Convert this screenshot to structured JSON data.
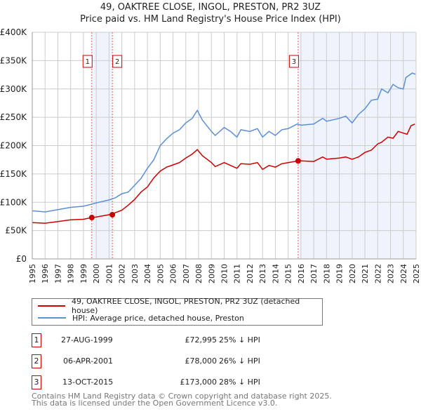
{
  "title_line1": "49, OAKTREE CLOSE, INGOL, PRESTON, PR2 3UZ",
  "title_line2": "Price paid vs. HM Land Registry's House Price Index (HPI)",
  "chart_data": {
    "type": "line",
    "title": "49, OAKTREE CLOSE, INGOL, PRESTON, PR2 3UZ — Price paid vs. HM Land Registry's House Price Index (HPI)",
    "xlim": [
      1995,
      2025
    ],
    "ylim": [
      0,
      400000
    ],
    "x_ticks": [
      "1995",
      "1996",
      "1997",
      "1998",
      "1999",
      "2000",
      "2001",
      "2002",
      "2003",
      "2004",
      "2005",
      "2006",
      "2007",
      "2008",
      "2009",
      "2010",
      "2011",
      "2012",
      "2013",
      "2014",
      "2015",
      "2016",
      "2017",
      "2018",
      "2019",
      "2020",
      "2021",
      "2022",
      "2023",
      "2024",
      "2025"
    ],
    "y_ticks": [
      {
        "v": 0,
        "label": "£0"
      },
      {
        "v": 50000,
        "label": "£50K"
      },
      {
        "v": 100000,
        "label": "£100K"
      },
      {
        "v": 150000,
        "label": "£150K"
      },
      {
        "v": 200000,
        "label": "£200K"
      },
      {
        "v": 250000,
        "label": "£250K"
      },
      {
        "v": 300000,
        "label": "£300K"
      },
      {
        "v": 350000,
        "label": "£350K"
      },
      {
        "v": 400000,
        "label": "£400K"
      }
    ],
    "grid": true,
    "colors": {
      "property": "#cc0000",
      "hpi": "#5b8fd6",
      "shade": "#eef3fc",
      "marker_line": "#e06060"
    },
    "shaded_ranges": [
      [
        1999.65,
        2001.26
      ],
      [
        2015.78,
        2025
      ]
    ],
    "series": [
      {
        "name": "49, OAKTREE CLOSE, INGOL, PRESTON, PR2 3UZ (detached house)",
        "key": "property",
        "x": [
          1995,
          1996,
          1997,
          1998,
          1999,
          1999.65,
          2000,
          2001,
          2001.3,
          2002,
          2002.5,
          2003,
          2003.5,
          2004,
          2004.5,
          2005,
          2005.5,
          2006,
          2006.5,
          2007,
          2007.5,
          2007.9,
          2008.3,
          2009,
          2009.3,
          2010,
          2010.5,
          2011,
          2011.3,
          2012,
          2012.6,
          2013,
          2013.5,
          2014,
          2014.5,
          2015,
          2015.78,
          2016,
          2017,
          2017.7,
          2018,
          2019,
          2019.5,
          2020,
          2020.5,
          2021,
          2021.5,
          2022,
          2022.3,
          2022.8,
          2023.2,
          2023.6,
          2024,
          2024.3,
          2024.6,
          2024.9
        ],
        "y": [
          64000,
          63000,
          66000,
          69000,
          70000,
          73000,
          74000,
          78000,
          80000,
          86000,
          95000,
          105000,
          118000,
          127000,
          143000,
          155000,
          162000,
          166000,
          170000,
          178000,
          185000,
          193000,
          182000,
          170000,
          163000,
          170000,
          165000,
          160000,
          168000,
          167000,
          170000,
          158000,
          165000,
          162000,
          168000,
          170000,
          173000,
          173000,
          172000,
          180000,
          176000,
          178000,
          180000,
          176000,
          180000,
          188000,
          192000,
          203000,
          206000,
          215000,
          213000,
          225000,
          222000,
          220000,
          235000,
          238000
        ]
      },
      {
        "name": "HPI: Average price, detached house, Preston",
        "key": "hpi",
        "x": [
          1995,
          1996,
          1997,
          1998,
          1999,
          1999.7,
          2000,
          2001,
          2001.5,
          2002,
          2002.5,
          2003,
          2003.5,
          2004,
          2004.5,
          2005,
          2005.5,
          2006,
          2006.5,
          2007,
          2007.5,
          2007.9,
          2008.3,
          2009,
          2009.3,
          2010,
          2010.5,
          2011,
          2011.3,
          2012,
          2012.6,
          2013,
          2013.5,
          2014,
          2014.5,
          2015,
          2015.7,
          2016,
          2017,
          2017.7,
          2018,
          2019,
          2019.5,
          2020,
          2020.5,
          2021,
          2021.5,
          2022,
          2022.3,
          2022.8,
          2023.2,
          2023.6,
          2024,
          2024.2,
          2024.7,
          2024.95
        ],
        "y": [
          85000,
          83000,
          87000,
          91000,
          93000,
          97000,
          99000,
          104000,
          108000,
          115000,
          118000,
          130000,
          142000,
          160000,
          175000,
          200000,
          212000,
          222000,
          228000,
          240000,
          248000,
          262000,
          245000,
          225000,
          218000,
          232000,
          225000,
          215000,
          228000,
          225000,
          230000,
          215000,
          225000,
          218000,
          228000,
          230000,
          238000,
          236000,
          238000,
          248000,
          243000,
          248000,
          252000,
          240000,
          255000,
          265000,
          280000,
          282000,
          300000,
          293000,
          308000,
          302000,
          300000,
          320000,
          328000,
          326000
        ]
      }
    ],
    "sales": [
      {
        "n": "1",
        "x": 1999.65,
        "y": 72995,
        "date": "27-AUG-1999",
        "price": "£72,995",
        "delta": "25% ↓ HPI"
      },
      {
        "n": "2",
        "x": 2001.26,
        "y": 78000,
        "date": "06-APR-2001",
        "price": "£78,000",
        "delta": "26% ↓ HPI"
      },
      {
        "n": "3",
        "x": 2015.78,
        "y": 173000,
        "date": "13-OCT-2015",
        "price": "£173,000",
        "delta": "28% ↓ HPI"
      }
    ]
  },
  "legend": {
    "property": "49, OAKTREE CLOSE, INGOL, PRESTON, PR2 3UZ (detached house)",
    "hpi": "HPI: Average price, detached house, Preston"
  },
  "footer": {
    "line1": "Contains HM Land Registry data © Crown copyright and database right 2025.",
    "line2": "This data is licensed under the Open Government Licence v3.0."
  }
}
